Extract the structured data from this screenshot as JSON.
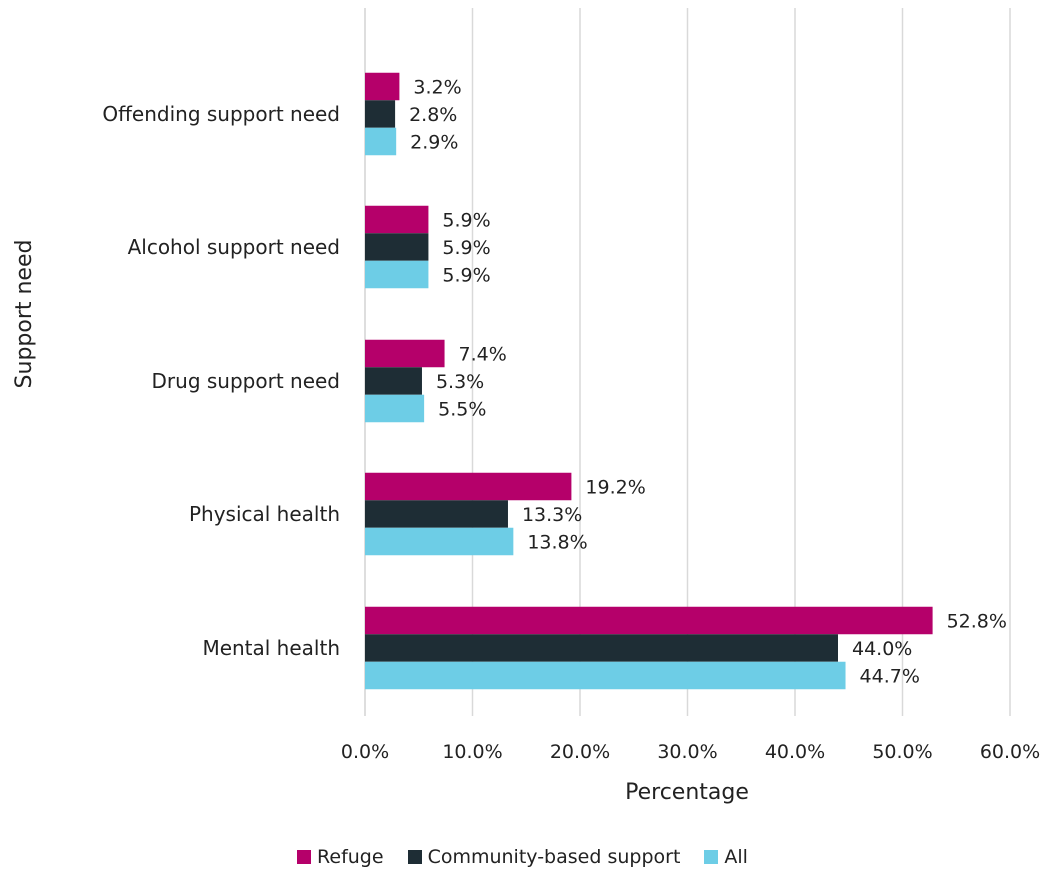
{
  "chart_data": {
    "type": "bar",
    "orientation": "horizontal",
    "xlabel": "Percentage",
    "ylabel": "Support need",
    "xlim": [
      0,
      60
    ],
    "x_ticks": [
      "0.0%",
      "10.0%",
      "20.0%",
      "30.0%",
      "40.0%",
      "50.0%",
      "60.0%"
    ],
    "grid": "vertical",
    "legend_position": "bottom",
    "categories": [
      "Offending support need",
      "Alcohol support need",
      "Drug support need",
      "Physical health",
      "Mental health"
    ],
    "series": [
      {
        "name": "Refuge",
        "color": "#b5006a",
        "values": [
          3.2,
          5.9,
          7.4,
          19.2,
          52.8
        ],
        "labels": [
          "3.2%",
          "5.9%",
          "7.4%",
          "19.2%",
          "52.8%"
        ]
      },
      {
        "name": "Community-based support",
        "color": "#1e2d35",
        "values": [
          2.8,
          5.9,
          5.3,
          13.3,
          44.0
        ],
        "labels": [
          "2.8%",
          "5.9%",
          "5.3%",
          "13.3%",
          "44.0%"
        ]
      },
      {
        "name": "All",
        "color": "#6dcde6",
        "values": [
          2.9,
          5.9,
          5.5,
          13.8,
          44.7
        ],
        "labels": [
          "2.9%",
          "5.9%",
          "5.5%",
          "13.8%",
          "44.7%"
        ]
      }
    ]
  }
}
